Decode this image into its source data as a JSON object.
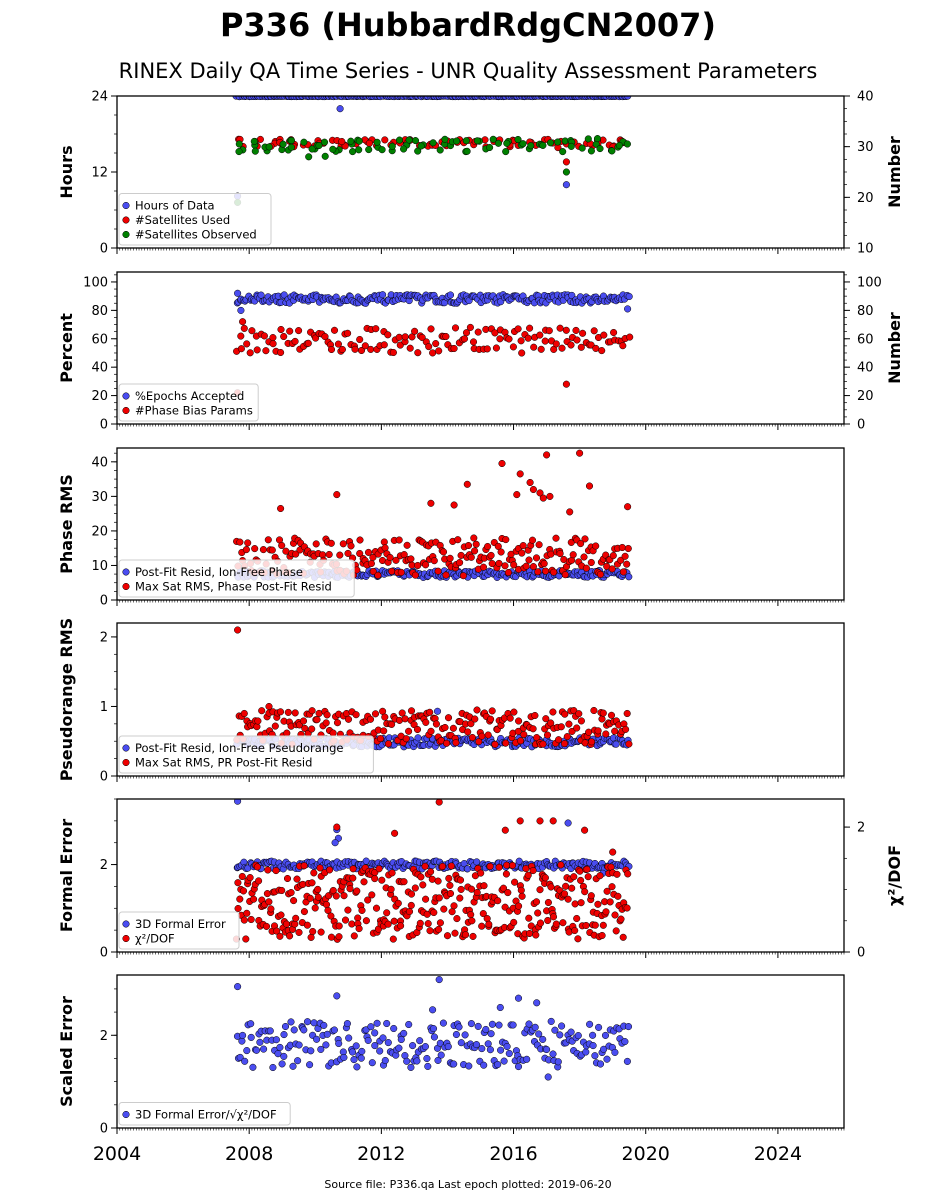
{
  "title": "P336 (HubbardRdgCN2007)",
  "subtitle": "RINEX Daily QA Time Series - UNR Quality Assessment Parameters",
  "footer": "Source file: P336.qa Last epoch plotted: 2019-06-20",
  "colors": {
    "blue": "#4a4df0",
    "red": "#ee0000",
    "green": "#008000",
    "edge": "#000000"
  },
  "x_axis": {
    "range": [
      2004,
      2026
    ],
    "ticks": [
      2004,
      2008,
      2012,
      2016,
      2020,
      2024
    ],
    "tick_labels": [
      "2004",
      "2008",
      "2012",
      "2016",
      "2020",
      "2024"
    ]
  },
  "chart_data": [
    {
      "type": "scatter",
      "name": "hours-panel",
      "ylabel": "Hours",
      "ylim": [
        0,
        24
      ],
      "yticks": [
        0,
        12,
        24
      ],
      "y2label": "Number",
      "y2lim": [
        10,
        40
      ],
      "y2ticks": [
        10,
        20,
        30,
        40
      ],
      "legend": "lower-left",
      "series": [
        {
          "name": "Hours of Data",
          "color": "blue",
          "axis": "left",
          "band": [
            2007.6,
            2019.47,
            23.9,
            24.0,
            0.05
          ],
          "outliers": [
            [
              2007.65,
              8.2
            ],
            [
              2010.75,
              22.0
            ],
            [
              2017.6,
              10.0
            ]
          ]
        },
        {
          "name": "#Satellites Used",
          "color": "red",
          "axis": "right",
          "band": [
            2007.6,
            2019.47,
            29.8,
            31.5,
            0.4
          ],
          "outliers": [
            [
              2009.35,
              30.0
            ],
            [
              2017.6,
              27.0
            ]
          ]
        },
        {
          "name": "#Satellites Observed",
          "color": "green",
          "axis": "right",
          "band": [
            2007.6,
            2019.47,
            29.0,
            31.6,
            0.4
          ],
          "outliers": [
            [
              2007.65,
              19.0
            ],
            [
              2017.6,
              25.0
            ],
            [
              2009.8,
              28.0
            ],
            [
              2010.3,
              28.1
            ]
          ]
        }
      ]
    },
    {
      "type": "scatter",
      "name": "percent-panel",
      "ylabel": "Percent",
      "ylim": [
        0,
        107
      ],
      "yticks": [
        0,
        20,
        40,
        60,
        80,
        100
      ],
      "y2label": "Number",
      "y2lim": [
        0,
        107
      ],
      "y2ticks": [
        0,
        20,
        40,
        60,
        80,
        100
      ],
      "legend": "lower-left",
      "series": [
        {
          "name": "%Epochs Accepted",
          "color": "blue",
          "axis": "left",
          "band": [
            2007.6,
            2019.47,
            85,
            91,
            0.05
          ],
          "outliers": [
            [
              2007.65,
              92
            ],
            [
              2007.75,
              80
            ],
            [
              2019.45,
              81
            ]
          ]
        },
        {
          "name": "#Phase Bias Params",
          "color": "red",
          "axis": "right",
          "band": [
            2007.6,
            2019.47,
            50,
            68,
            0.08
          ],
          "outliers": [
            [
              2007.65,
              22
            ],
            [
              2017.6,
              28
            ],
            [
              2007.8,
              72
            ]
          ]
        }
      ]
    },
    {
      "type": "scatter",
      "name": "phase-rms-panel",
      "ylabel": "Phase RMS",
      "ylim": [
        0,
        44
      ],
      "yticks": [
        0,
        10,
        20,
        30,
        40
      ],
      "legend": "lower-left",
      "series": [
        {
          "name": "Post-Fit Resid, Ion-Free Phase",
          "color": "blue",
          "axis": "left",
          "band": [
            2007.6,
            2019.47,
            6.5,
            8.5,
            0.05
          ],
          "outliers": []
        },
        {
          "name": "Max Sat RMS, Phase Post-Fit Resid",
          "color": "red",
          "axis": "left",
          "band": [
            2007.6,
            2019.47,
            7,
            18,
            0.05
          ],
          "outliers": [
            [
              2010.65,
              30.5
            ],
            [
              2015.65,
              39.5
            ],
            [
              2016.2,
              36.5
            ],
            [
              2016.5,
              34
            ],
            [
              2017.0,
              42
            ],
            [
              2018.0,
              42.5
            ],
            [
              2016.8,
              31
            ],
            [
              2014.6,
              33.5
            ],
            [
              2018.3,
              33
            ],
            [
              2016.6,
              32
            ],
            [
              2017.1,
              30
            ],
            [
              2013.5,
              28
            ],
            [
              2014.2,
              27.5
            ],
            [
              2016.1,
              30.5
            ],
            [
              2019.45,
              27
            ],
            [
              2008.95,
              26.5
            ],
            [
              2016.9,
              29.5
            ],
            [
              2017.7,
              25.5
            ]
          ]
        }
      ]
    },
    {
      "type": "scatter",
      "name": "pseudorange-rms-panel",
      "ylabel": "Pseudorange RMS",
      "ylim": [
        0,
        2.2
      ],
      "yticks": [
        0,
        1,
        2
      ],
      "legend": "lower-left",
      "series": [
        {
          "name": "Post-Fit Resid, Ion-Free Pseudorange",
          "color": "blue",
          "axis": "left",
          "band": [
            2007.6,
            2019.47,
            0.42,
            0.55,
            0.05
          ],
          "outliers": [
            [
              2013.7,
              0.93
            ]
          ]
        },
        {
          "name": "Max Sat RMS, PR Post-Fit Resid",
          "color": "red",
          "axis": "left",
          "band": [
            2007.6,
            2019.47,
            0.45,
            0.95,
            0.05
          ],
          "outliers": [
            [
              2007.65,
              2.1
            ],
            [
              2008.6,
              1.0
            ]
          ]
        }
      ]
    },
    {
      "type": "scatter",
      "name": "formal-error-panel",
      "ylabel": "Formal Error",
      "ylim": [
        0,
        3.5
      ],
      "yticks": [
        0,
        2
      ],
      "y2label": "χ²/DOF",
      "y2lim": [
        0,
        2.45
      ],
      "y2ticks": [
        0,
        2
      ],
      "legend": "lower-left",
      "series": [
        {
          "name": "3D Formal Error",
          "color": "blue",
          "axis": "left",
          "band": [
            2007.6,
            2019.47,
            1.9,
            2.08,
            0.05
          ],
          "outliers": [
            [
              2007.65,
              3.45
            ],
            [
              2010.65,
              2.8
            ],
            [
              2010.7,
              2.6
            ],
            [
              2017.65,
              2.95
            ],
            [
              2010.6,
              2.5
            ],
            [
              2018.7,
              1.8
            ]
          ]
        },
        {
          "name": "χ²/DOF",
          "color": "red",
          "axis": "right",
          "band": [
            2007.6,
            2019.47,
            0.2,
            1.4,
            0.03
          ],
          "outliers": [
            [
              2013.75,
              2.4
            ],
            [
              2016.2,
              2.1
            ],
            [
              2016.8,
              2.1
            ],
            [
              2017.2,
              2.1
            ],
            [
              2010.65,
              2.0
            ],
            [
              2015.75,
              1.95
            ],
            [
              2018.15,
              1.95
            ],
            [
              2012.4,
              1.9
            ],
            [
              2019.0,
              1.6
            ]
          ]
        }
      ]
    },
    {
      "type": "scatter",
      "name": "scaled-error-panel",
      "ylabel": "Scaled Error",
      "ylim": [
        0,
        3.3
      ],
      "yticks": [
        0,
        2
      ],
      "legend": "lower-left",
      "series": [
        {
          "name": "3D Formal Error/√χ²/DOF",
          "color": "blue",
          "axis": "left",
          "band": [
            2007.6,
            2019.47,
            1.3,
            2.3,
            0.05
          ],
          "outliers": [
            [
              2007.65,
              3.05
            ],
            [
              2013.75,
              3.2
            ],
            [
              2010.65,
              2.85
            ],
            [
              2017.05,
              1.1
            ],
            [
              2016.15,
              2.8
            ],
            [
              2015.6,
              2.6
            ],
            [
              2016.7,
              2.7
            ],
            [
              2013.55,
              2.55
            ]
          ]
        }
      ]
    }
  ]
}
